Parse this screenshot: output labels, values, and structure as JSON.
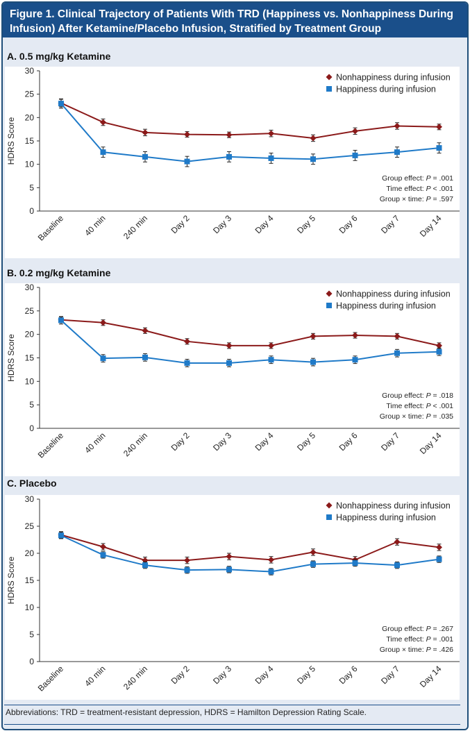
{
  "header": {
    "title_line1": "Figure 1. Clinical Trajectory of Patients With TRD (Happiness vs. Nonhappiness During",
    "title_line2": "Infusion) After Ketamine/Placebo Infusion, Stratified by Treatment Group"
  },
  "footnote": "Abbreviations: TRD = treatment-resistant depression, HDRS = Hamilton Depression Rating Scale.",
  "colors": {
    "nonhappiness": "#8b1a1a",
    "happiness": "#1f7ac8",
    "header_bg": "#1a4f8a",
    "panel_bg": "#e4eaf3"
  },
  "chart_data": [
    {
      "type": "line",
      "title": "A. 0.5 mg/kg Ketamine",
      "ylabel": "HDRS Score",
      "xlabel": "",
      "ylim": [
        0,
        30
      ],
      "yticks": [
        "0",
        "5",
        "10",
        "15",
        "20",
        "25",
        "30"
      ],
      "categories": [
        "Baseline",
        "40 min",
        "240 min",
        "Day 2",
        "Day 3",
        "Day 4",
        "Day 5",
        "Day 6",
        "Day 7",
        "Day 14"
      ],
      "series": [
        {
          "name": "Nonhappiness during infusion",
          "marker": "diamond",
          "values": [
            23.1,
            19.0,
            16.8,
            16.4,
            16.3,
            16.6,
            15.6,
            17.1,
            18.2,
            18.0
          ],
          "error": [
            0.8,
            0.7,
            0.7,
            0.6,
            0.6,
            0.7,
            0.7,
            0.7,
            0.7,
            0.6
          ]
        },
        {
          "name": "Happiness during infusion",
          "marker": "square",
          "values": [
            23.0,
            12.6,
            11.6,
            10.6,
            11.6,
            11.3,
            11.1,
            11.9,
            12.6,
            13.5
          ],
          "error": [
            1.0,
            1.1,
            1.1,
            1.1,
            1.1,
            1.1,
            1.1,
            1.1,
            1.1,
            1.1
          ]
        }
      ],
      "annotations": [
        {
          "label": "Group effect: ",
          "p_prefix": "P",
          "value": " = .001"
        },
        {
          "label": "Time effect: ",
          "p_prefix": "P",
          "value": " < .001"
        },
        {
          "label": "Group × time: ",
          "p_prefix": "P",
          "value": " = .597"
        }
      ],
      "legend": "top-right",
      "grid": false
    },
    {
      "type": "line",
      "title": "B. 0.2 mg/kg Ketamine",
      "ylabel": "HDRS Score",
      "xlabel": "",
      "ylim": [
        0,
        30
      ],
      "yticks": [
        "0",
        "5",
        "10",
        "15",
        "20",
        "25",
        "30"
      ],
      "categories": [
        "Baseline",
        "40 min",
        "240 min",
        "Day 2",
        "Day 3",
        "Day 4",
        "Day 5",
        "Day 6",
        "Day 7",
        "Day 14"
      ],
      "series": [
        {
          "name": "Nonhappiness during infusion",
          "marker": "diamond",
          "values": [
            23.1,
            22.5,
            20.8,
            18.5,
            17.6,
            17.6,
            19.6,
            19.8,
            19.6,
            17.6
          ],
          "error": [
            0.6,
            0.6,
            0.6,
            0.6,
            0.6,
            0.6,
            0.6,
            0.6,
            0.6,
            0.6
          ]
        },
        {
          "name": "Happiness during infusion",
          "marker": "square",
          "values": [
            23.0,
            14.9,
            15.1,
            13.9,
            13.9,
            14.6,
            14.1,
            14.6,
            16.0,
            16.3
          ],
          "error": [
            0.8,
            0.8,
            0.8,
            0.8,
            0.8,
            0.8,
            0.8,
            0.8,
            0.8,
            0.8
          ]
        }
      ],
      "annotations": [
        {
          "label": "Group effect: ",
          "p_prefix": "P",
          "value": " = .018"
        },
        {
          "label": "Time effect: ",
          "p_prefix": "P",
          "value": " < .001"
        },
        {
          "label": "Group × time: ",
          "p_prefix": "P",
          "value": " = .035"
        }
      ],
      "legend": "top-right",
      "grid": false
    },
    {
      "type": "line",
      "title": "C. Placebo",
      "ylabel": "HDRS Score",
      "xlabel": "",
      "ylim": [
        0,
        30
      ],
      "yticks": [
        "0",
        "5",
        "10",
        "15",
        "20",
        "25",
        "30"
      ],
      "categories": [
        "Baseline",
        "40 min",
        "240 min",
        "Day 2",
        "Day 3",
        "Day 4",
        "Day 5",
        "Day 6",
        "Day 7",
        "Day 14"
      ],
      "series": [
        {
          "name": "Nonhappiness during infusion",
          "marker": "diamond",
          "values": [
            23.4,
            21.2,
            18.7,
            18.7,
            19.4,
            18.8,
            20.2,
            18.8,
            22.1,
            21.1
          ],
          "error": [
            0.6,
            0.6,
            0.6,
            0.6,
            0.6,
            0.6,
            0.6,
            0.6,
            0.6,
            0.6
          ]
        },
        {
          "name": "Happiness during infusion",
          "marker": "square",
          "values": [
            23.3,
            19.7,
            17.8,
            16.9,
            17.0,
            16.6,
            18.0,
            18.2,
            17.8,
            18.9
          ],
          "error": [
            0.6,
            0.6,
            0.6,
            0.6,
            0.6,
            0.6,
            0.6,
            0.6,
            0.6,
            0.6
          ]
        }
      ],
      "annotations": [
        {
          "label": "Group effect: ",
          "p_prefix": "P",
          "value": " = .267"
        },
        {
          "label": "Time effect: ",
          "p_prefix": "P",
          "value": " = .001"
        },
        {
          "label": "Group × time: ",
          "p_prefix": "P",
          "value": " = .426"
        }
      ],
      "legend": "top-right",
      "grid": false
    }
  ]
}
